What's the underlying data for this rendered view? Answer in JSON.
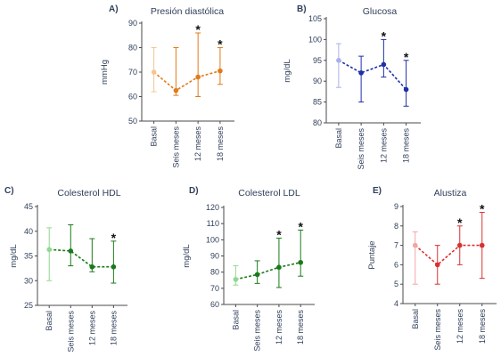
{
  "chart_data": [
    {
      "panel": "A)",
      "type": "line",
      "title": "Presión diastólica",
      "ylabel": "mmHg",
      "ylim": [
        50,
        90
      ],
      "yticks": [
        50,
        60,
        70,
        80,
        90
      ],
      "categories": [
        "Basal",
        "Seis meses",
        "12 meses",
        "18 meses"
      ],
      "values": [
        70,
        62.5,
        68,
        70.5
      ],
      "err_low": [
        62,
        60.5,
        60,
        65
      ],
      "err_high": [
        80,
        80,
        86,
        80
      ],
      "significant": [
        "",
        "",
        "*",
        "*"
      ],
      "colors": {
        "line": "#e07a1a",
        "light": "#f4c690"
      }
    },
    {
      "panel": "B)",
      "type": "line",
      "title": "Glucosa",
      "ylabel": "mg/dL",
      "ylim": [
        80,
        105
      ],
      "yticks": [
        80,
        85,
        90,
        95,
        100,
        105
      ],
      "categories": [
        "Basal",
        "Seis meses",
        "12 meses",
        "18 meses"
      ],
      "values": [
        95,
        92,
        94,
        88
      ],
      "err_low": [
        88.5,
        85,
        91,
        84
      ],
      "err_high": [
        99,
        96,
        100,
        95
      ],
      "significant": [
        "",
        "",
        "*",
        "*"
      ],
      "colors": {
        "line": "#1f2fa8",
        "light": "#a9b0ea"
      }
    },
    {
      "panel": "C)",
      "type": "line",
      "title": "Colesterol HDL",
      "ylabel": "mg/dL",
      "ylim": [
        25,
        45
      ],
      "yticks": [
        25,
        30,
        35,
        40,
        45
      ],
      "categories": [
        "Basal",
        "Seis meses",
        "12 meses",
        "18 meses"
      ],
      "values": [
        36.3,
        36,
        32.8,
        32.8
      ],
      "err_low": [
        30,
        33,
        31.8,
        29.5
      ],
      "err_high": [
        40.7,
        41.3,
        38.5,
        38
      ],
      "significant": [
        "",
        "",
        "",
        "*"
      ],
      "colors": {
        "line": "#1a7a1a",
        "light": "#8fd88f"
      }
    },
    {
      "panel": "D)",
      "type": "line",
      "title": "Colesterol LDL",
      "ylabel": "mg/dL",
      "ylim": [
        60,
        120
      ],
      "yticks": [
        60,
        70,
        80,
        90,
        100,
        110,
        120
      ],
      "categories": [
        "Basal",
        "Seis meses",
        "12 meses",
        "18 meses"
      ],
      "values": [
        75.5,
        78.5,
        83,
        86
      ],
      "err_low": [
        72,
        73,
        70.5,
        77.5
      ],
      "err_high": [
        84,
        87,
        101,
        106
      ],
      "significant": [
        "",
        "",
        "*",
        "*"
      ],
      "colors": {
        "line": "#1a7a1a",
        "light": "#8fd88f"
      }
    },
    {
      "panel": "E)",
      "type": "line",
      "title": "Alustiza",
      "ylabel": "Puntaje",
      "ylim": [
        4,
        9
      ],
      "yticks": [
        4,
        5,
        6,
        7,
        8,
        9
      ],
      "categories": [
        "Basal",
        "Seis meses",
        "12 meses",
        "18 meses"
      ],
      "values": [
        7,
        6,
        7,
        7
      ],
      "err_low": [
        5,
        5,
        6,
        5.3
      ],
      "err_high": [
        7.7,
        7,
        8,
        8.7
      ],
      "significant": [
        "",
        "",
        "*",
        "*"
      ],
      "colors": {
        "line": "#d93030",
        "light": "#f2a6a6"
      }
    }
  ]
}
